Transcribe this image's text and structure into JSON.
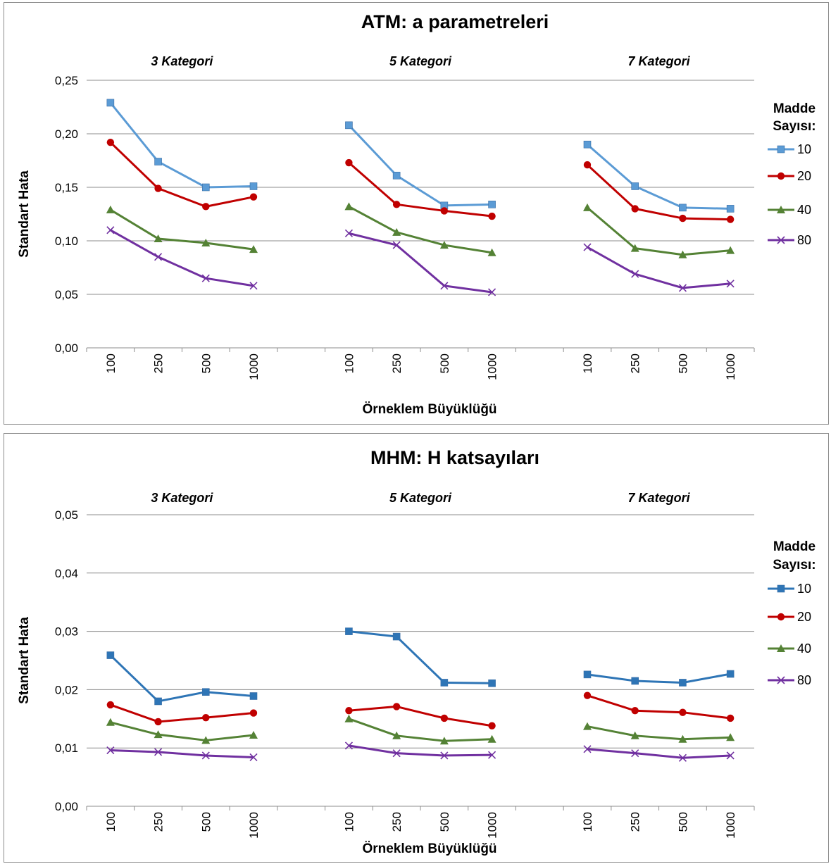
{
  "chart_data": [
    {
      "type": "line",
      "title": "ATM: a parametreleri",
      "xlabel": "Örneklem Büyüklüğü",
      "ylabel": "Standart Hata",
      "ylim": [
        0,
        0.25
      ],
      "yticks": [
        "0,00",
        "0,05",
        "0,10",
        "0,15",
        "0,20",
        "0,25"
      ],
      "grid": true,
      "legend_title": [
        "Madde",
        "Sayısı:"
      ],
      "legend_position": "right",
      "groups": [
        {
          "label": "3 Kategori",
          "categories": [
            "100",
            "250",
            "500",
            "1000"
          ]
        },
        {
          "label": "5 Kategori",
          "categories": [
            "100",
            "250",
            "500",
            "1000"
          ]
        },
        {
          "label": "7 Kategori",
          "categories": [
            "100",
            "250",
            "500",
            "1000"
          ]
        }
      ],
      "series": [
        {
          "name": "10",
          "color": "#5b9bd5",
          "marker": "square",
          "values": [
            [
              0.229,
              0.174,
              0.15,
              0.151
            ],
            [
              0.208,
              0.161,
              0.133,
              0.134
            ],
            [
              0.19,
              0.151,
              0.131,
              0.13
            ]
          ]
        },
        {
          "name": "20",
          "color": "#c00000",
          "marker": "circle",
          "values": [
            [
              0.192,
              0.149,
              0.132,
              0.141
            ],
            [
              0.173,
              0.134,
              0.128,
              0.123
            ],
            [
              0.171,
              0.13,
              0.121,
              0.12
            ]
          ]
        },
        {
          "name": "40",
          "color": "#548235",
          "marker": "triangle",
          "values": [
            [
              0.129,
              0.102,
              0.098,
              0.092
            ],
            [
              0.132,
              0.108,
              0.096,
              0.089
            ],
            [
              0.131,
              0.093,
              0.087,
              0.091
            ]
          ]
        },
        {
          "name": "80",
          "color": "#7030a0",
          "marker": "x",
          "values": [
            [
              0.11,
              0.085,
              0.065,
              0.058
            ],
            [
              0.107,
              0.096,
              0.058,
              0.052
            ],
            [
              0.094,
              0.069,
              0.056,
              0.06
            ]
          ]
        }
      ]
    },
    {
      "type": "line",
      "title": "MHM: H katsayıları",
      "xlabel": "Örneklem Büyüklüğü",
      "ylabel": "Standart Hata",
      "ylim": [
        0,
        0.05
      ],
      "yticks": [
        "0,00",
        "0,01",
        "0,02",
        "0,03",
        "0,04",
        "0,05"
      ],
      "grid": true,
      "legend_title": [
        "Madde",
        "Sayısı:"
      ],
      "legend_position": "right",
      "groups": [
        {
          "label": "3 Kategori",
          "categories": [
            "100",
            "250",
            "500",
            "1000"
          ]
        },
        {
          "label": "5 Kategori",
          "categories": [
            "100",
            "250",
            "500",
            "1000"
          ]
        },
        {
          "label": "7 Kategori",
          "categories": [
            "100",
            "250",
            "500",
            "1000"
          ]
        }
      ],
      "series": [
        {
          "name": "10",
          "color": "#2e75b6",
          "marker": "square",
          "values": [
            [
              0.0259,
              0.018,
              0.0196,
              0.0189
            ],
            [
              0.03,
              0.0291,
              0.0212,
              0.0211
            ],
            [
              0.0226,
              0.0215,
              0.0212,
              0.0227
            ]
          ]
        },
        {
          "name": "20",
          "color": "#c00000",
          "marker": "circle",
          "values": [
            [
              0.0174,
              0.0145,
              0.0152,
              0.016
            ],
            [
              0.0164,
              0.0171,
              0.0151,
              0.0138
            ],
            [
              0.019,
              0.0164,
              0.0161,
              0.0151
            ]
          ]
        },
        {
          "name": "40",
          "color": "#548235",
          "marker": "triangle",
          "values": [
            [
              0.0144,
              0.0123,
              0.0113,
              0.0122
            ],
            [
              0.015,
              0.0121,
              0.0112,
              0.0115
            ],
            [
              0.0137,
              0.0121,
              0.0115,
              0.0118
            ]
          ]
        },
        {
          "name": "80",
          "color": "#7030a0",
          "marker": "x",
          "values": [
            [
              0.0096,
              0.0093,
              0.0087,
              0.0084
            ],
            [
              0.0104,
              0.0091,
              0.0087,
              0.0088
            ],
            [
              0.0098,
              0.0091,
              0.0083,
              0.0087
            ]
          ]
        }
      ]
    }
  ]
}
